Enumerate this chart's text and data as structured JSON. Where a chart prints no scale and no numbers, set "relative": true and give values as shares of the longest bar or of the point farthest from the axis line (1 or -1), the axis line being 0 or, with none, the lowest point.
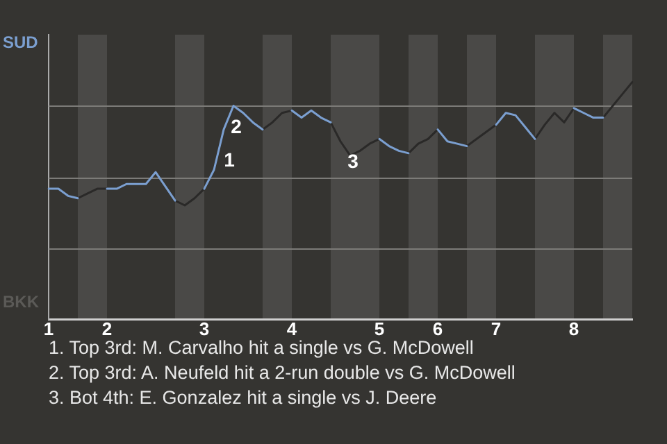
{
  "chart_data": {
    "type": "line",
    "relative": true,
    "categories": [
      "1",
      null,
      null,
      null,
      null,
      null,
      "2",
      null,
      null,
      null,
      null,
      null,
      null,
      null,
      null,
      null,
      "3",
      null,
      null,
      null,
      null,
      null,
      null,
      null,
      null,
      "4",
      null,
      null,
      null,
      null,
      null,
      null,
      null,
      null,
      "5",
      null,
      null,
      null,
      null,
      null,
      "6",
      null,
      null,
      null,
      null,
      null,
      "7",
      null,
      null,
      null,
      null,
      null,
      null,
      null,
      "8",
      null,
      null,
      null,
      null,
      null,
      null
    ],
    "grid": "y",
    "legend": false,
    "marker": "none",
    "line_style": "solid",
    "series": [
      {
        "color": "#7b9fd0",
        "values": [
          0.55,
          0.55,
          0.52,
          0.51,
          null,
          null,
          0.55,
          0.55,
          0.57,
          0.57,
          0.57,
          0.62,
          0.56,
          0.5,
          null,
          null,
          0.55,
          0.63,
          0.8,
          0.9,
          0.87,
          0.83,
          0.8,
          null,
          null,
          0.88,
          0.85,
          0.88,
          0.85,
          0.83,
          null,
          null,
          null,
          null,
          0.76,
          0.73,
          0.71,
          0.7,
          null,
          null,
          0.8,
          0.75,
          0.74,
          0.73,
          null,
          null,
          0.82,
          0.87,
          0.86,
          0.81,
          0.76,
          null,
          null,
          null,
          0.89,
          0.87,
          0.85,
          0.85,
          null,
          null,
          null
        ]
      },
      {
        "color": "#2a2928",
        "values": [
          null,
          null,
          null,
          0.51,
          0.53,
          0.55,
          0.55,
          null,
          null,
          null,
          null,
          null,
          null,
          0.5,
          0.48,
          0.51,
          0.55,
          null,
          null,
          null,
          null,
          null,
          0.8,
          0.83,
          0.87,
          0.88,
          null,
          null,
          null,
          0.83,
          0.75,
          0.69,
          0.71,
          0.74,
          0.76,
          null,
          null,
          0.7,
          0.74,
          0.76,
          0.8,
          null,
          null,
          0.73,
          0.76,
          0.79,
          0.82,
          null,
          null,
          null,
          0.76,
          0.82,
          0.87,
          0.83,
          0.89,
          null,
          null,
          0.85,
          0.9,
          0.95,
          1
        ]
      }
    ],
    "annotations": [
      "SUD",
      "BKK",
      "1",
      "2",
      "3",
      "1. Top 3rd: M. Carvalho hit a single vs G. McDowell",
      "2. Top 3rd: A. Neufeld hit a 2-run double vs G. McDowell",
      "3. Bot 4th: E. Gonzalez hit a single vs J. Deere"
    ]
  }
}
